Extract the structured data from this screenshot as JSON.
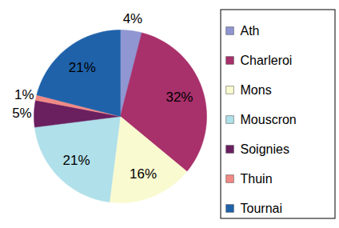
{
  "chart_data": {
    "type": "pie",
    "categories": [
      "Ath",
      "Charleroi",
      "Mons",
      "Mouscron",
      "Soignies",
      "Thuin",
      "Tournai"
    ],
    "values": [
      4,
      32,
      16,
      21,
      5,
      1,
      21
    ],
    "value_labels": [
      "4%",
      "32%",
      "16%",
      "21%",
      "5%",
      "1%",
      "21%"
    ],
    "colors": [
      "#8f96d2",
      "#a8306b",
      "#fafad0",
      "#b0e0ea",
      "#6a1f5f",
      "#f08a86",
      "#1f62aa"
    ],
    "data_labels": true,
    "legend": "right"
  }
}
